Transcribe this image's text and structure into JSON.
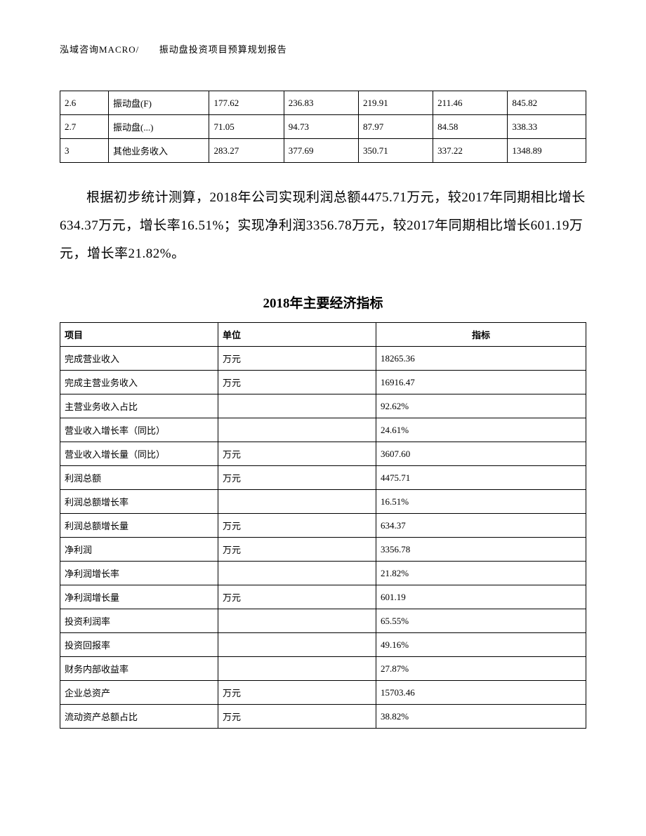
{
  "header": {
    "left": "泓域咨询MACRO/",
    "right": "振动盘投资项目预算规划报告"
  },
  "table1": {
    "rows": [
      {
        "id": "2.6",
        "name": "振动盘(F)",
        "v1": "177.62",
        "v2": "236.83",
        "v3": "219.91",
        "v4": "211.46",
        "total": "845.82"
      },
      {
        "id": "2.7",
        "name": "振动盘(...)",
        "v1": "71.05",
        "v2": "94.73",
        "v3": "87.97",
        "v4": "84.58",
        "total": "338.33"
      },
      {
        "id": "3",
        "name": "其他业务收入",
        "v1": "283.27",
        "v2": "377.69",
        "v3": "350.71",
        "v4": "337.22",
        "total": "1348.89"
      }
    ]
  },
  "paragraph": "根据初步统计测算，2018年公司实现利润总额4475.71万元，较2017年同期相比增长634.37万元，增长率16.51%；实现净利润3356.78万元，较2017年同期相比增长601.19万元，增长率21.82%。",
  "table2": {
    "title": "2018年主要经济指标",
    "headers": {
      "item": "项目",
      "unit": "单位",
      "value": "指标"
    },
    "rows": [
      {
        "item": "完成营业收入",
        "unit": "万元",
        "value": "18265.36"
      },
      {
        "item": "完成主营业务收入",
        "unit": "万元",
        "value": "16916.47"
      },
      {
        "item": "主营业务收入占比",
        "unit": "",
        "value": "92.62%"
      },
      {
        "item": "营业收入增长率（同比）",
        "unit": "",
        "value": "24.61%"
      },
      {
        "item": "营业收入增长量（同比）",
        "unit": "万元",
        "value": "3607.60"
      },
      {
        "item": "利润总额",
        "unit": "万元",
        "value": "4475.71"
      },
      {
        "item": "利润总额增长率",
        "unit": "",
        "value": "16.51%"
      },
      {
        "item": "利润总额增长量",
        "unit": "万元",
        "value": "634.37"
      },
      {
        "item": "净利润",
        "unit": "万元",
        "value": "3356.78"
      },
      {
        "item": "净利润增长率",
        "unit": "",
        "value": "21.82%"
      },
      {
        "item": "净利润增长量",
        "unit": "万元",
        "value": "601.19"
      },
      {
        "item": "投资利润率",
        "unit": "",
        "value": "65.55%"
      },
      {
        "item": "投资回报率",
        "unit": "",
        "value": "49.16%"
      },
      {
        "item": "财务内部收益率",
        "unit": "",
        "value": "27.87%"
      },
      {
        "item": "企业总资产",
        "unit": "万元",
        "value": "15703.46"
      },
      {
        "item": "流动资产总额占比",
        "unit": "万元",
        "value": "38.82%"
      }
    ]
  }
}
